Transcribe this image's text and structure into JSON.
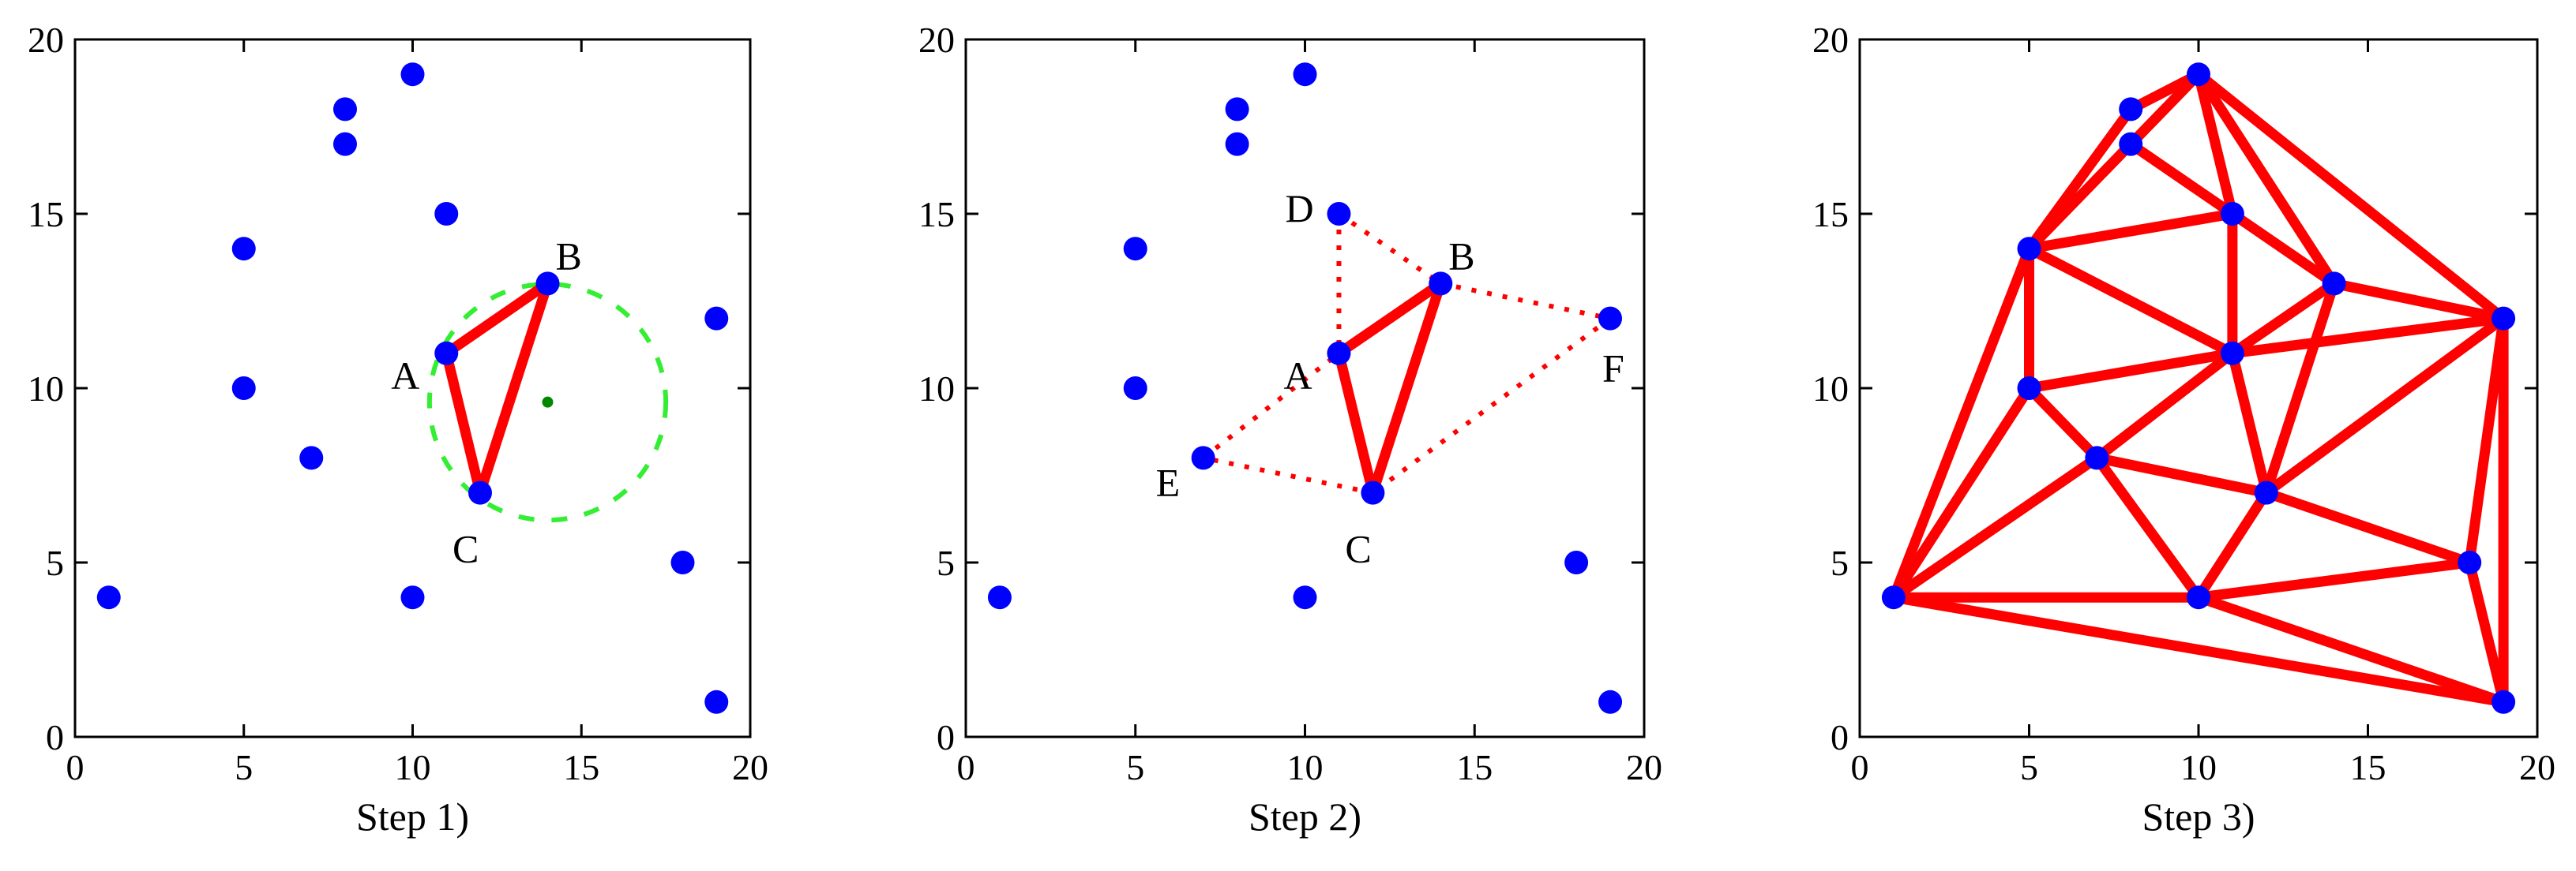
{
  "chart_data": [
    {
      "type": "scatter",
      "xlabel": "Step 1)",
      "xlim": [
        0,
        20
      ],
      "ylim": [
        0,
        20
      ],
      "xticks": [
        0,
        5,
        10,
        15,
        20
      ],
      "yticks": [
        0,
        5,
        10,
        15,
        20
      ],
      "points": [
        [
          1,
          4
        ],
        [
          5,
          10
        ],
        [
          5,
          14
        ],
        [
          7,
          8
        ],
        [
          8,
          17
        ],
        [
          8,
          18
        ],
        [
          10,
          4
        ],
        [
          10,
          19
        ],
        [
          11,
          11
        ],
        [
          11,
          15
        ],
        [
          12,
          7
        ],
        [
          14,
          13
        ],
        [
          18,
          5
        ],
        [
          19,
          1
        ],
        [
          19,
          12
        ]
      ],
      "triangle_edges": [
        [
          [
            11,
            11
          ],
          [
            14,
            13
          ]
        ],
        [
          [
            14,
            13
          ],
          [
            12,
            7
          ]
        ],
        [
          [
            12,
            7
          ],
          [
            11,
            11
          ]
        ]
      ],
      "circumcircle": {
        "center": [
          14,
          9.6
        ],
        "radius": 3.5
      },
      "point_labels": [
        {
          "text": "A",
          "at": [
            11,
            11
          ]
        },
        {
          "text": "B",
          "at": [
            14,
            13
          ]
        },
        {
          "text": "C",
          "at": [
            12,
            7
          ]
        }
      ]
    },
    {
      "type": "scatter",
      "xlabel": "Step 2)",
      "xlim": [
        0,
        20
      ],
      "ylim": [
        0,
        20
      ],
      "xticks": [
        0,
        5,
        10,
        15,
        20
      ],
      "yticks": [
        0,
        5,
        10,
        15,
        20
      ],
      "points": [
        [
          1,
          4
        ],
        [
          5,
          10
        ],
        [
          5,
          14
        ],
        [
          7,
          8
        ],
        [
          8,
          17
        ],
        [
          8,
          18
        ],
        [
          10,
          4
        ],
        [
          10,
          19
        ],
        [
          11,
          11
        ],
        [
          11,
          15
        ],
        [
          12,
          7
        ],
        [
          14,
          13
        ],
        [
          18,
          5
        ],
        [
          19,
          1
        ],
        [
          19,
          12
        ]
      ],
      "triangle_edges": [
        [
          [
            11,
            11
          ],
          [
            14,
            13
          ]
        ],
        [
          [
            14,
            13
          ],
          [
            12,
            7
          ]
        ],
        [
          [
            12,
            7
          ],
          [
            11,
            11
          ]
        ]
      ],
      "candidate_edges": [
        [
          [
            11,
            15
          ],
          [
            11,
            11
          ]
        ],
        [
          [
            11,
            15
          ],
          [
            14,
            13
          ]
        ],
        [
          [
            14,
            13
          ],
          [
            19,
            12
          ]
        ],
        [
          [
            19,
            12
          ],
          [
            12,
            7
          ]
        ],
        [
          [
            12,
            7
          ],
          [
            7,
            8
          ]
        ],
        [
          [
            7,
            8
          ],
          [
            11,
            11
          ]
        ]
      ],
      "point_labels": [
        {
          "text": "A",
          "at": [
            11,
            11
          ]
        },
        {
          "text": "B",
          "at": [
            14,
            13
          ]
        },
        {
          "text": "C",
          "at": [
            12,
            7
          ]
        },
        {
          "text": "D",
          "at": [
            11,
            15
          ]
        },
        {
          "text": "E",
          "at": [
            7,
            8
          ]
        },
        {
          "text": "F",
          "at": [
            19,
            12
          ]
        }
      ]
    },
    {
      "type": "scatter",
      "xlabel": "Step 3)",
      "xlim": [
        0,
        20
      ],
      "ylim": [
        0,
        20
      ],
      "xticks": [
        0,
        5,
        10,
        15,
        20
      ],
      "yticks": [
        0,
        5,
        10,
        15,
        20
      ],
      "points": [
        [
          1,
          4
        ],
        [
          5,
          10
        ],
        [
          5,
          14
        ],
        [
          7,
          8
        ],
        [
          8,
          17
        ],
        [
          8,
          18
        ],
        [
          10,
          4
        ],
        [
          10,
          19
        ],
        [
          11,
          11
        ],
        [
          11,
          15
        ],
        [
          12,
          7
        ],
        [
          14,
          13
        ],
        [
          18,
          5
        ],
        [
          19,
          1
        ],
        [
          19,
          12
        ]
      ],
      "triangle_edges": [
        [
          [
            1,
            4
          ],
          [
            5,
            14
          ]
        ],
        [
          [
            1,
            4
          ],
          [
            5,
            10
          ]
        ],
        [
          [
            1,
            4
          ],
          [
            7,
            8
          ]
        ],
        [
          [
            1,
            4
          ],
          [
            10,
            4
          ]
        ],
        [
          [
            1,
            4
          ],
          [
            19,
            1
          ]
        ],
        [
          [
            5,
            14
          ],
          [
            8,
            18
          ]
        ],
        [
          [
            5,
            14
          ],
          [
            8,
            17
          ]
        ],
        [
          [
            5,
            14
          ],
          [
            10,
            19
          ]
        ],
        [
          [
            5,
            14
          ],
          [
            11,
            15
          ]
        ],
        [
          [
            5,
            14
          ],
          [
            5,
            10
          ]
        ],
        [
          [
            5,
            14
          ],
          [
            11,
            11
          ]
        ],
        [
          [
            8,
            18
          ],
          [
            10,
            19
          ]
        ],
        [
          [
            8,
            17
          ],
          [
            10,
            19
          ]
        ],
        [
          [
            8,
            17
          ],
          [
            11,
            15
          ]
        ],
        [
          [
            10,
            19
          ],
          [
            11,
            15
          ]
        ],
        [
          [
            10,
            19
          ],
          [
            14,
            13
          ]
        ],
        [
          [
            10,
            19
          ],
          [
            19,
            12
          ]
        ],
        [
          [
            11,
            15
          ],
          [
            14,
            13
          ]
        ],
        [
          [
            11,
            15
          ],
          [
            11,
            11
          ]
        ],
        [
          [
            14,
            13
          ],
          [
            19,
            12
          ]
        ],
        [
          [
            14,
            13
          ],
          [
            11,
            11
          ]
        ],
        [
          [
            14,
            13
          ],
          [
            12,
            7
          ]
        ],
        [
          [
            5,
            10
          ],
          [
            11,
            11
          ]
        ],
        [
          [
            5,
            10
          ],
          [
            7,
            8
          ]
        ],
        [
          [
            11,
            11
          ],
          [
            7,
            8
          ]
        ],
        [
          [
            11,
            11
          ],
          [
            12,
            7
          ]
        ],
        [
          [
            11,
            11
          ],
          [
            19,
            12
          ]
        ],
        [
          [
            7,
            8
          ],
          [
            12,
            7
          ]
        ],
        [
          [
            7,
            8
          ],
          [
            10,
            4
          ]
        ],
        [
          [
            12,
            7
          ],
          [
            19,
            12
          ]
        ],
        [
          [
            12,
            7
          ],
          [
            10,
            4
          ]
        ],
        [
          [
            12,
            7
          ],
          [
            18,
            5
          ]
        ],
        [
          [
            10,
            4
          ],
          [
            18,
            5
          ]
        ],
        [
          [
            10,
            4
          ],
          [
            19,
            1
          ]
        ],
        [
          [
            18,
            5
          ],
          [
            19,
            1
          ]
        ],
        [
          [
            18,
            5
          ],
          [
            19,
            12
          ]
        ],
        [
          [
            19,
            12
          ],
          [
            19,
            1
          ]
        ]
      ],
      "point_labels": []
    }
  ]
}
